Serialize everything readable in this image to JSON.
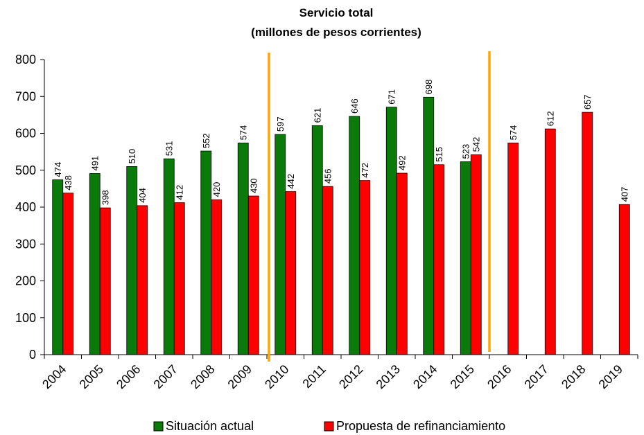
{
  "chart_data": {
    "type": "bar",
    "title": [
      "Servicio total",
      "(millones de pesos corrientes)"
    ],
    "xlabel": "",
    "ylabel": "",
    "ylim": [
      0,
      800
    ],
    "yticks": [
      0,
      100,
      200,
      300,
      400,
      500,
      600,
      700,
      800
    ],
    "categories": [
      "2004",
      "2005",
      "2006",
      "2007",
      "2008",
      "2009",
      "2010",
      "2011",
      "2012",
      "2013",
      "2014",
      "2015",
      "2016",
      "2017",
      "2018",
      "2019"
    ],
    "series": [
      {
        "name": "Situación actual",
        "color": "#0a7a0a",
        "values": [
          474,
          491,
          510,
          531,
          552,
          574,
          597,
          621,
          646,
          671,
          698,
          523,
          null,
          null,
          null,
          null
        ]
      },
      {
        "name": "Propuesta de refinanciamiento",
        "color": "#ff0000",
        "values": [
          438,
          398,
          404,
          412,
          420,
          430,
          442,
          456,
          472,
          492,
          515,
          542,
          574,
          612,
          657,
          407
        ]
      }
    ],
    "reference_lines": [
      {
        "between": [
          "2009",
          "2010"
        ],
        "color": "#ffa500"
      },
      {
        "between": [
          "2015",
          "2016"
        ],
        "color": "#ffa500"
      }
    ],
    "grid": false,
    "legend": "bottom"
  }
}
